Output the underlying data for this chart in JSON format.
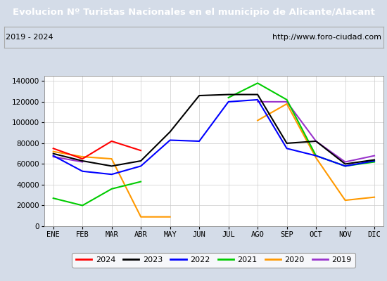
{
  "title": "Evolucion Nº Turistas Nacionales en el municipio de Alicante/Alacant",
  "subtitle_left": "2019 - 2024",
  "subtitle_right": "http://www.foro-ciudad.com",
  "months": [
    "ENE",
    "FEB",
    "MAR",
    "ABR",
    "MAY",
    "JUN",
    "JUL",
    "AGO",
    "SEP",
    "OCT",
    "NOV",
    "DIC"
  ],
  "series": {
    "2024": {
      "color": "#ff0000",
      "data": [
        75000,
        65000,
        82000,
        73000,
        null,
        null,
        null,
        null,
        null,
        null,
        null,
        null
      ]
    },
    "2023": {
      "color": "#000000",
      "data": [
        70000,
        63000,
        58000,
        63000,
        91000,
        126000,
        127000,
        127000,
        80000,
        82000,
        60000,
        64000
      ]
    },
    "2022": {
      "color": "#0000ff",
      "data": [
        68000,
        53000,
        50000,
        58000,
        83000,
        82000,
        120000,
        122000,
        75000,
        68000,
        58000,
        63000
      ]
    },
    "2021": {
      "color": "#00cc00",
      "data": [
        27000,
        20000,
        36000,
        43000,
        null,
        null,
        124000,
        138000,
        122000,
        68000,
        58000,
        62000
      ]
    },
    "2020": {
      "color": "#ff9900",
      "data": [
        72000,
        67000,
        65000,
        9000,
        9000,
        null,
        null,
        102000,
        118000,
        66000,
        25000,
        28000
      ]
    },
    "2019": {
      "color": "#9933cc",
      "data": [
        67000,
        62000,
        null,
        null,
        null,
        null,
        null,
        120000,
        120000,
        82000,
        62000,
        68000
      ]
    }
  },
  "ylim": [
    0,
    145000
  ],
  "yticks": [
    0,
    20000,
    40000,
    60000,
    80000,
    100000,
    120000,
    140000
  ],
  "title_bg_color": "#4d79a8",
  "title_text_color": "#ffffff",
  "plot_bg_color": "#ffffff",
  "outer_bg_color": "#d4dce8",
  "legend_order": [
    "2024",
    "2023",
    "2022",
    "2021",
    "2020",
    "2019"
  ],
  "title_fontsize": 9.5,
  "subtitle_fontsize": 8,
  "axis_fontsize": 7.5,
  "legend_fontsize": 8
}
